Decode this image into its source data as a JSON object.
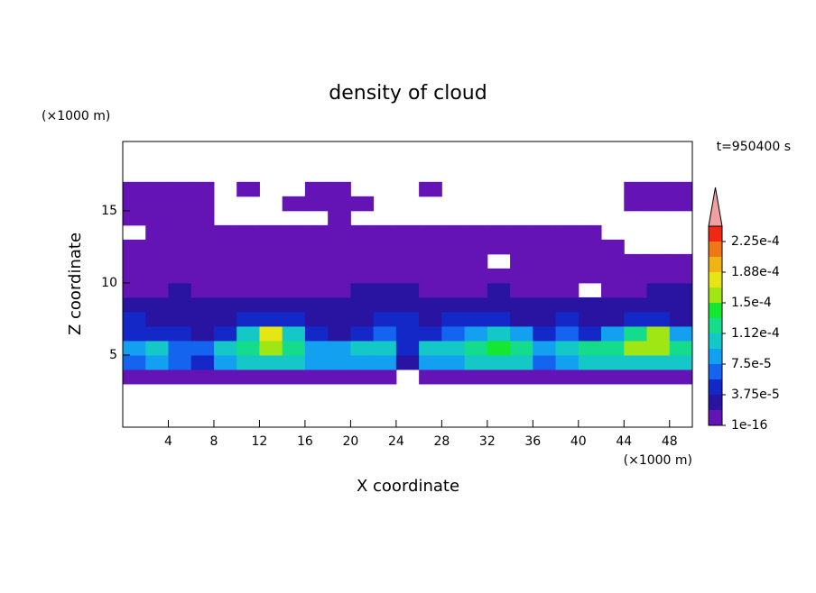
{
  "chart_data": {
    "type": "contour",
    "title": "density of cloud",
    "x_label": "X coordinate",
    "y_label": "Z coordinate",
    "x_unit": "(×1000 m)",
    "y_unit": "(×1000 m)",
    "annotation": "t=950400 s",
    "xlim": [
      0,
      50
    ],
    "xticks": [
      4,
      8,
      12,
      16,
      20,
      24,
      28,
      32,
      36,
      40,
      44,
      48
    ],
    "ylim": [
      0,
      19.8
    ],
    "yticks": [
      5,
      10,
      15
    ],
    "x": [
      1,
      3,
      5,
      7,
      9,
      11,
      13,
      15,
      17,
      19,
      21,
      23,
      25,
      27,
      29,
      31,
      33,
      35,
      37,
      39,
      41,
      43,
      45,
      47,
      49
    ],
    "y": [
      3.5,
      4.5,
      5.5,
      6.5,
      7.5,
      8.5,
      9.5,
      10.5,
      11.5,
      12.5,
      13.5,
      14.5,
      15.5,
      16.5
    ],
    "z": [
      [
        1e-05,
        1e-05,
        1e-05,
        1e-05,
        1e-05,
        1e-05,
        1e-05,
        1e-05,
        1e-05,
        1e-05,
        1e-05,
        1e-05,
        null,
        1e-05,
        1e-05,
        1e-05,
        1e-05,
        1e-05,
        1e-05,
        1e-05,
        1e-05,
        1e-05,
        1e-05,
        1e-05,
        1e-05
      ],
      [
        7e-05,
        9e-05,
        6e-05,
        5e-05,
        9e-05,
        0.00011,
        0.00011,
        0.0001,
        8e-05,
        8e-05,
        9e-05,
        9e-05,
        3e-05,
        8e-05,
        9e-05,
        0.00011,
        0.00011,
        0.0001,
        6e-05,
        9e-05,
        0.0001,
        0.0001,
        0.00011,
        0.00011,
        0.0001
      ],
      [
        9e-05,
        0.0001,
        7e-05,
        6e-05,
        0.00011,
        0.00013,
        0.00015,
        0.00013,
        8e-05,
        9e-05,
        0.0001,
        0.00011,
        5e-05,
        0.0001,
        0.00011,
        0.00013,
        0.00014,
        0.00012,
        8e-05,
        0.00011,
        0.00012,
        0.00012,
        0.00015,
        0.00016,
        0.00013
      ],
      [
        5e-05,
        4e-05,
        4e-05,
        3e-05,
        5e-05,
        0.00011,
        0.00017,
        0.00011,
        4e-05,
        3e-05,
        5e-05,
        6e-05,
        4e-05,
        5e-05,
        7e-05,
        9e-05,
        0.0001,
        8e-05,
        5e-05,
        7e-05,
        5e-05,
        9e-05,
        0.00013,
        0.00016,
        8e-05
      ],
      [
        4e-05,
        3e-05,
        3e-05,
        3e-05,
        3e-05,
        4e-05,
        4e-05,
        4e-05,
        3e-05,
        2e-05,
        3e-05,
        4e-05,
        4e-05,
        3e-05,
        4e-05,
        4e-05,
        4e-05,
        3e-05,
        3e-05,
        4e-05,
        3e-05,
        3e-05,
        4e-05,
        4e-05,
        3e-05
      ],
      [
        3e-05,
        2e-05,
        2e-05,
        2e-05,
        2e-05,
        2e-05,
        2e-05,
        2e-05,
        2e-05,
        2e-05,
        3e-05,
        3e-05,
        3e-05,
        2e-05,
        2e-05,
        2e-05,
        2e-05,
        2e-05,
        2e-05,
        2e-05,
        2e-05,
        2e-05,
        2e-05,
        3e-05,
        3e-05
      ],
      [
        1e-05,
        1e-05,
        2e-05,
        1e-05,
        1e-05,
        1e-05,
        1e-05,
        1e-05,
        1e-05,
        1e-05,
        2e-05,
        2e-05,
        2e-05,
        1e-05,
        1e-05,
        1e-05,
        2e-05,
        1e-05,
        1e-05,
        1e-05,
        null,
        1e-05,
        1e-05,
        2e-05,
        2e-05
      ],
      [
        1e-05,
        1e-05,
        1e-05,
        1e-05,
        1e-05,
        1e-05,
        1e-05,
        1e-05,
        1e-05,
        1e-05,
        1e-05,
        1e-05,
        1e-05,
        1e-05,
        1e-05,
        1e-05,
        1e-05,
        1e-05,
        1e-05,
        1e-05,
        1e-05,
        1e-05,
        1e-05,
        1e-05,
        1e-05
      ],
      [
        1e-05,
        1e-05,
        1e-05,
        1e-05,
        1e-05,
        1e-05,
        1e-05,
        1e-05,
        1e-05,
        1e-05,
        1e-05,
        1e-05,
        1e-05,
        1e-05,
        1e-05,
        1e-05,
        null,
        1e-05,
        1e-05,
        1e-05,
        1e-05,
        1e-05,
        1e-05,
        1e-05,
        1e-05
      ],
      [
        1e-05,
        1e-05,
        1e-05,
        1e-05,
        1e-05,
        1e-05,
        1e-05,
        1e-05,
        1e-05,
        1e-05,
        1e-05,
        1e-05,
        1e-05,
        1e-05,
        1e-05,
        1e-05,
        1e-05,
        1e-05,
        1e-05,
        1e-05,
        1e-05,
        1e-05,
        null,
        null,
        null
      ],
      [
        null,
        1e-05,
        1e-05,
        1e-05,
        1e-05,
        1e-05,
        1e-05,
        1e-05,
        1e-05,
        1e-05,
        1e-05,
        1e-05,
        1e-05,
        1e-05,
        1e-05,
        1e-05,
        1e-05,
        1e-05,
        1e-05,
        1e-05,
        1e-05,
        null,
        null,
        null,
        null
      ],
      [
        1e-05,
        1e-05,
        1e-05,
        1e-05,
        null,
        null,
        null,
        null,
        null,
        1e-05,
        null,
        null,
        null,
        null,
        null,
        null,
        null,
        null,
        null,
        null,
        null,
        null,
        null,
        null,
        null
      ],
      [
        1e-05,
        1e-05,
        1e-05,
        1e-05,
        null,
        null,
        null,
        1e-05,
        1e-05,
        1e-05,
        1e-05,
        null,
        null,
        null,
        null,
        null,
        null,
        null,
        null,
        null,
        null,
        null,
        1e-05,
        1e-05,
        1e-05
      ],
      [
        1e-05,
        1e-05,
        1e-05,
        1e-05,
        null,
        1e-05,
        null,
        null,
        1e-05,
        1e-05,
        null,
        null,
        null,
        1e-05,
        null,
        null,
        null,
        null,
        null,
        null,
        null,
        null,
        1e-05,
        1e-05,
        1e-05
      ]
    ],
    "levels": [
      1e-16,
      1.875e-05,
      3.75e-05,
      5.625e-05,
      7.5e-05,
      9.375e-05,
      0.0001125,
      0.00013125,
      0.00015,
      0.00016875,
      0.0001875,
      0.00020625,
      0.000225
    ],
    "colors": [
      "#6414b4",
      "#2814a0",
      "#1428c8",
      "#1464f0",
      "#14a0f0",
      "#14c8c8",
      "#14dc8c",
      "#14e632",
      "#a0e614",
      "#e6e614",
      "#f0b414",
      "#f07814",
      "#f02814"
    ],
    "extend_color": "#f0a0a0",
    "cbar_ticks": [
      {
        "value": 1e-16,
        "label": "1e-16"
      },
      {
        "value": 3.75e-05,
        "label": "3.75e-5"
      },
      {
        "value": 7.5e-05,
        "label": "7.5e-5"
      },
      {
        "value": 0.0001125,
        "label": "1.12e-4"
      },
      {
        "value": 0.00015,
        "label": "1.5e-4"
      },
      {
        "value": 0.0001875,
        "label": "1.88e-4"
      },
      {
        "value": 0.000225,
        "label": "2.25e-4"
      }
    ]
  }
}
